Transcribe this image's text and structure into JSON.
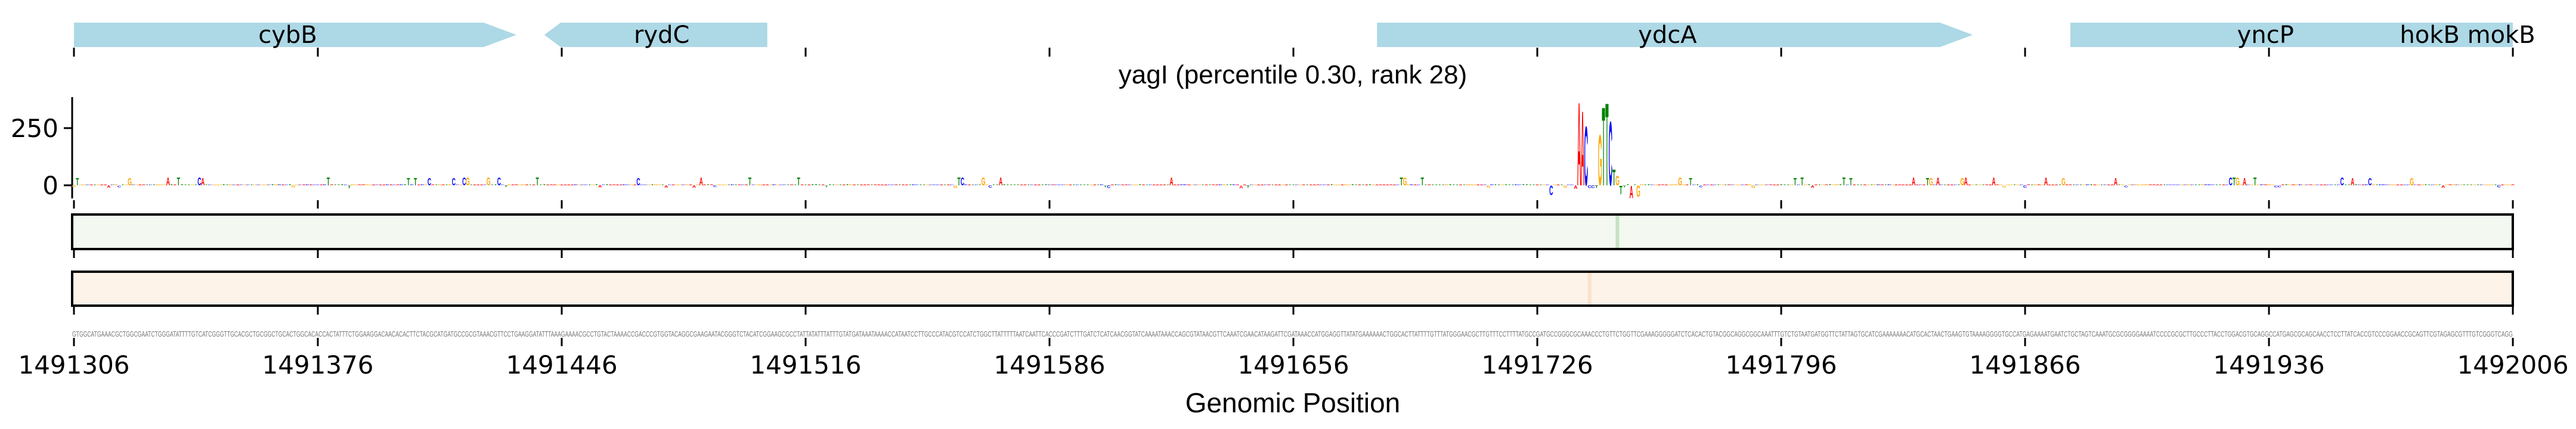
{
  "chart_data": {
    "type": "sequence-logo",
    "title": "yagI (percentile 0.30, rank 28)",
    "xlabel": "Genomic Position",
    "xlim": [
      1491306,
      1492006
    ],
    "xticks": [
      1491306,
      1491376,
      1491446,
      1491516,
      1491586,
      1491656,
      1491726,
      1491796,
      1491866,
      1491936,
      1492006
    ],
    "xtick_labels": [
      "1491306",
      "1491376",
      "1491446",
      "1491516",
      "1491586",
      "1491656",
      "1491726",
      "1491796",
      "1491866",
      "1491936",
      "1492006"
    ],
    "ylim": [
      -55,
      380
    ],
    "yticks": [
      0,
      250
    ],
    "ytick_labels": [
      "0",
      "250"
    ],
    "letter_colors": {
      "A": "#ff0000",
      "C": "#0000ff",
      "G": "#ffa500",
      "T": "#008000"
    },
    "genes": [
      {
        "name": "cybB",
        "start": 1491306,
        "end": 1491433,
        "strand": "+"
      },
      {
        "name": "rydC",
        "start": 1491441,
        "end": 1491505,
        "strand": "-"
      },
      {
        "name": "ydcA",
        "start": 1491680,
        "end": 1491851,
        "strand": "+"
      },
      {
        "name": "yncP",
        "start": 1491879,
        "end": 1492006,
        "strand": "+",
        "label_pos": 1491935
      },
      {
        "name": "hokB mokB",
        "start": 1491930,
        "end": 1492006,
        "strand": "+",
        "label_pos": 1491993
      }
    ],
    "logo_peaks": [
      {
        "pos": 1491730,
        "base": "C",
        "value": -43
      },
      {
        "pos": 1491737,
        "base": "A",
        "value": -15
      },
      {
        "pos": 1491738,
        "base": "A",
        "value": 375
      },
      {
        "pos": 1491739,
        "base": "A",
        "value": 336
      },
      {
        "pos": 1491740,
        "base": "C",
        "value": 267
      },
      {
        "pos": 1491741,
        "base": "C",
        "value": -12
      },
      {
        "pos": 1491742,
        "base": "C",
        "value": -12
      },
      {
        "pos": 1491743,
        "base": "T",
        "value": -12
      },
      {
        "pos": 1491744,
        "base": "G",
        "value": 228
      },
      {
        "pos": 1491745,
        "base": "T",
        "value": 353
      },
      {
        "pos": 1491746,
        "base": "T",
        "value": 372
      },
      {
        "pos": 1491747,
        "base": "C",
        "value": 289
      },
      {
        "pos": 1491748,
        "base": "T",
        "value": 71
      },
      {
        "pos": 1491749,
        "base": "G",
        "value": 43
      },
      {
        "pos": 1491750,
        "base": "T",
        "value": -39
      },
      {
        "pos": 1491753,
        "base": "A",
        "value": -56
      },
      {
        "pos": 1491755,
        "base": "G",
        "value": -50
      }
    ],
    "track1": {
      "color": "#f3f9f0",
      "highlight_color": "#c5e3c0",
      "highlight_pos": 1491749
    },
    "track2": {
      "color": "#fdf3e8",
      "highlight_color": "#fbe0cc",
      "highlight_pos": 1491741
    },
    "gene_color": "#add8e6",
    "sequence": "GTGGCATGAAACGCTGGCGAATCTGGGATATTTTGTCATCGGGTTGCACGCTGCGGCTGCACTGGCACACCACTATTTCTGGAAGGACAACACACTTCTACGCATGATGCCGCGTAAACGTTCCTGAAGGATATTTAAAGAAAACGCCTGTACTAAAACCGACCCGTGGTACAGGCGAAGAATACGGGTCTACATCGGAAGCGCCTATTATATTTATTTGTATGATAAATAAAACCATAATCCTTGCCCATACGTCCATCTGGCTTATTTTTAATCAATTCACCCGATCTTTGATCTCATCAACGGTATCAAAATAAACCAGCGTATAACGTTCAAATCGAACATAAGATTCGATAAACCATGGAGGTTATATGAAAAAACTGGCACTTATTTTGTTTATGGGAACGCTTGTTTCCTTTTATGCCGATGCCGGGCGCAAACCCTGTTCTGGTTCGAAAGGGGGATCTCACACTGTACGGCAGGCGGCAAATTTGTCTGTAATGATGGTTCTATTAGTGCATCGAAAAAAACATGCACTAACTGAAGTGTAAAAGGGGTGCCATGAGAAAATGAATCTGCTAGTCAAATGCGCGGGGAAAATCCCCGCGCTTGCCCTTACCTGGACGTGCAGGCCATGAGCGCAGCAACCTCCTTATCACCGTCCCGGAACCGCAGTTCGTAGAGCGTTTGTCGGGTCAGG"
  }
}
